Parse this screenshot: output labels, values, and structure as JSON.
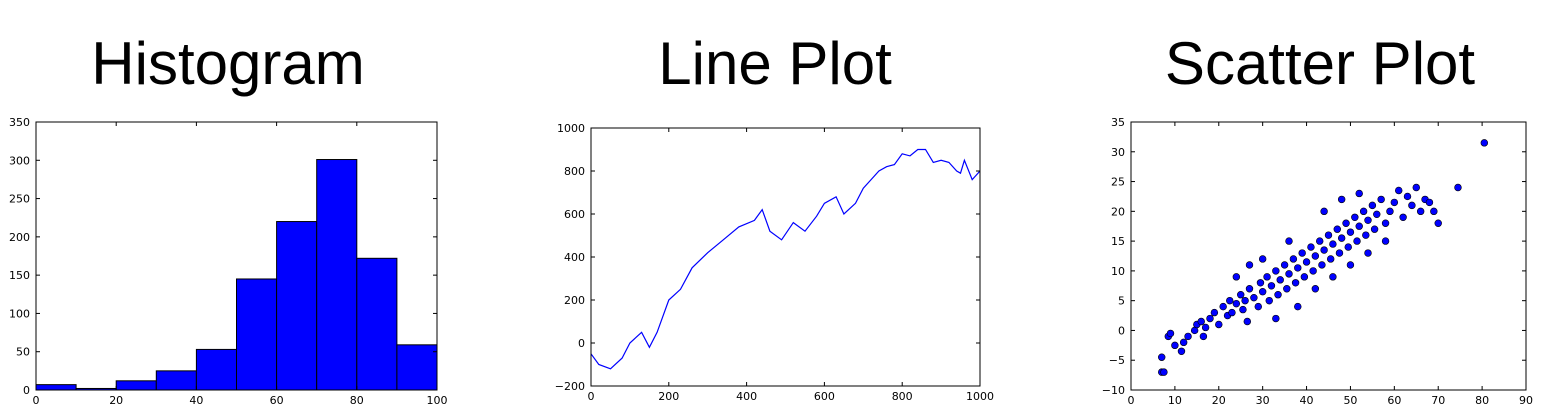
{
  "colors": {
    "series": "#0000ff",
    "axis": "#000000",
    "marker_edge": "#000000"
  },
  "chart_data": [
    {
      "type": "bar",
      "title": "Histogram",
      "xlim": [
        0,
        100
      ],
      "ylim": [
        0,
        350
      ],
      "xticks": [
        "0",
        "20",
        "40",
        "60",
        "80",
        "100"
      ],
      "yticks": [
        "0",
        "50",
        "100",
        "150",
        "200",
        "250",
        "300",
        "350"
      ],
      "bin_edges": [
        0,
        10,
        20,
        30,
        40,
        50,
        60,
        70,
        80,
        90,
        100
      ],
      "values": [
        7,
        2,
        12,
        25,
        53,
        145,
        220,
        301,
        172,
        59
      ]
    },
    {
      "type": "line",
      "title": "Line Plot",
      "xlim": [
        0,
        1000
      ],
      "ylim": [
        -200,
        1000
      ],
      "xticks": [
        "0",
        "200",
        "400",
        "600",
        "800",
        "1000"
      ],
      "yticks": [
        "−200",
        "0",
        "200",
        "400",
        "600",
        "800",
        "1000"
      ],
      "x": [
        0,
        20,
        50,
        80,
        100,
        130,
        150,
        170,
        200,
        230,
        260,
        300,
        340,
        380,
        420,
        440,
        460,
        490,
        520,
        550,
        580,
        600,
        630,
        650,
        680,
        700,
        720,
        740,
        760,
        780,
        800,
        820,
        840,
        860,
        880,
        900,
        920,
        940,
        950,
        960,
        980,
        1000
      ],
      "y": [
        -50,
        -100,
        -120,
        -70,
        0,
        50,
        -20,
        50,
        200,
        250,
        350,
        420,
        480,
        540,
        570,
        620,
        520,
        480,
        560,
        520,
        590,
        650,
        680,
        600,
        650,
        720,
        760,
        800,
        820,
        830,
        880,
        870,
        900,
        900,
        840,
        850,
        840,
        800,
        790,
        850,
        760,
        800
      ]
    },
    {
      "type": "scatter",
      "title": "Scatter Plot",
      "xlim": [
        0,
        90
      ],
      "ylim": [
        -10,
        35
      ],
      "xticks": [
        "0",
        "10",
        "20",
        "30",
        "40",
        "50",
        "60",
        "70",
        "80",
        "90"
      ],
      "yticks": [
        "−10",
        "−5",
        "0",
        "5",
        "10",
        "15",
        "20",
        "25",
        "30",
        "35"
      ],
      "points": [
        [
          7,
          -7
        ],
        [
          7.5,
          -7
        ],
        [
          7,
          -4.5
        ],
        [
          8.5,
          -1
        ],
        [
          9,
          -0.5
        ],
        [
          10,
          -2.5
        ],
        [
          11.5,
          -3.5
        ],
        [
          12,
          -2
        ],
        [
          13,
          -1
        ],
        [
          14.5,
          0
        ],
        [
          15,
          1
        ],
        [
          16,
          1.5
        ],
        [
          16.5,
          -1
        ],
        [
          17,
          0.5
        ],
        [
          18,
          2
        ],
        [
          19,
          3
        ],
        [
          20,
          1
        ],
        [
          21,
          4
        ],
        [
          22,
          2.5
        ],
        [
          22.5,
          5
        ],
        [
          23,
          3
        ],
        [
          24,
          4.5
        ],
        [
          25,
          6
        ],
        [
          25.5,
          3.5
        ],
        [
          26,
          5
        ],
        [
          26.5,
          1.5
        ],
        [
          27,
          7
        ],
        [
          28,
          5.5
        ],
        [
          29,
          4
        ],
        [
          29.5,
          8
        ],
        [
          30,
          6.5
        ],
        [
          31,
          9
        ],
        [
          31.5,
          5
        ],
        [
          32,
          7.5
        ],
        [
          33,
          10
        ],
        [
          33.5,
          6
        ],
        [
          34,
          8.5
        ],
        [
          35,
          11
        ],
        [
          35.5,
          7
        ],
        [
          36,
          9.5
        ],
        [
          37,
          12
        ],
        [
          37.5,
          8
        ],
        [
          38,
          10.5
        ],
        [
          39,
          13
        ],
        [
          39.5,
          9
        ],
        [
          40,
          11.5
        ],
        [
          41,
          14
        ],
        [
          41.5,
          10
        ],
        [
          42,
          12.5
        ],
        [
          43,
          15
        ],
        [
          43.5,
          11
        ],
        [
          44,
          13.5
        ],
        [
          45,
          16
        ],
        [
          45.5,
          12
        ],
        [
          46,
          14.5
        ],
        [
          47,
          17
        ],
        [
          47.5,
          13
        ],
        [
          48,
          15.5
        ],
        [
          49,
          18
        ],
        [
          49.5,
          14
        ],
        [
          50,
          16.5
        ],
        [
          51,
          19
        ],
        [
          51.5,
          15
        ],
        [
          52,
          17.5
        ],
        [
          53,
          20
        ],
        [
          53.5,
          16
        ],
        [
          54,
          18.5
        ],
        [
          55,
          21
        ],
        [
          55.5,
          17
        ],
        [
          56,
          19.5
        ],
        [
          57,
          22
        ],
        [
          58,
          18
        ],
        [
          59,
          20
        ],
        [
          60,
          21.5
        ],
        [
          61,
          23.5
        ],
        [
          62,
          19
        ],
        [
          63,
          22.5
        ],
        [
          64,
          21
        ],
        [
          65,
          24
        ],
        [
          66,
          20
        ],
        [
          67,
          22
        ],
        [
          68,
          21.5
        ],
        [
          69,
          20
        ],
        [
          70,
          18
        ],
        [
          74.5,
          24
        ],
        [
          80.5,
          31.5
        ],
        [
          27,
          11
        ],
        [
          33,
          2
        ],
        [
          38,
          4
        ],
        [
          42,
          7
        ],
        [
          46,
          9
        ],
        [
          50,
          11
        ],
        [
          54,
          13
        ],
        [
          58,
          15
        ],
        [
          48,
          22
        ],
        [
          52,
          23
        ],
        [
          44,
          20
        ],
        [
          36,
          15
        ],
        [
          30,
          12
        ],
        [
          24,
          9
        ]
      ]
    }
  ]
}
